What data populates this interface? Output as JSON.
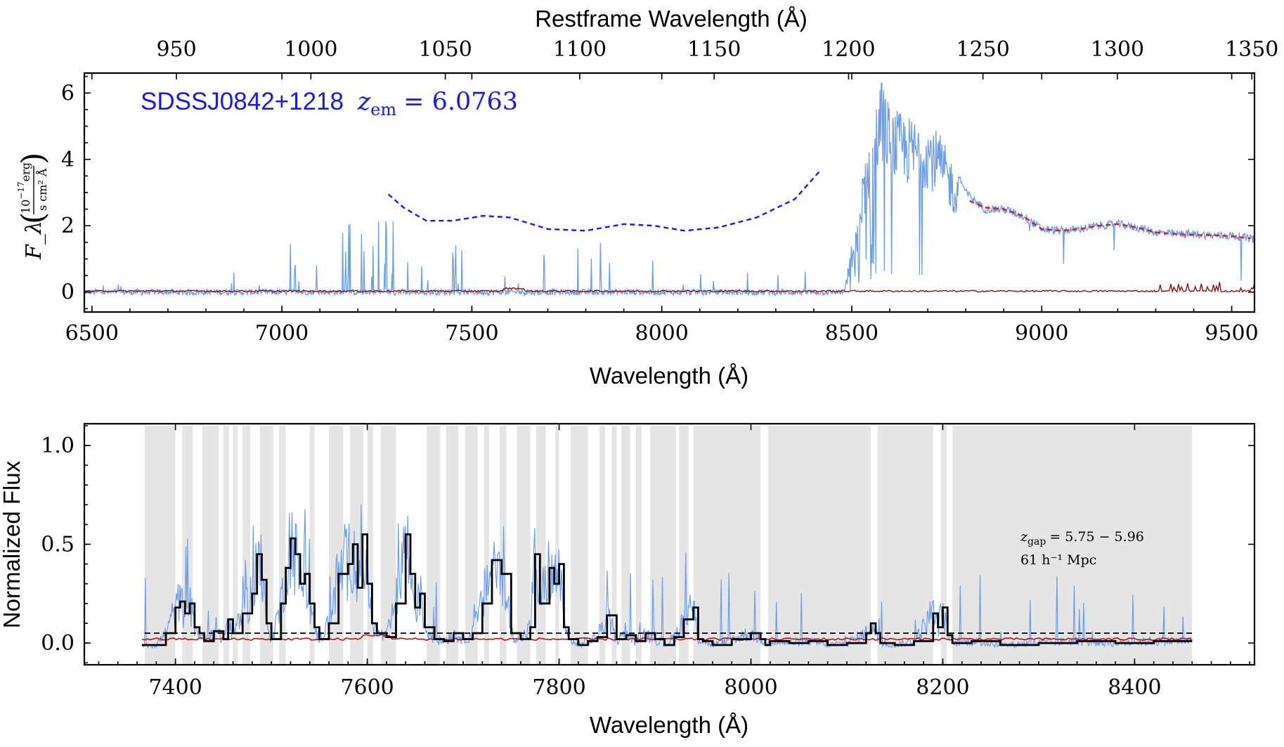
{
  "chart_data": [
    {
      "type": "line",
      "panel": "top",
      "xlabel": "Wavelength (Å)",
      "ylabel": "F_λ",
      "ylabel_unit_num": "10",
      "ylabel_unit_exp": "−17",
      "ylabel_unit_erg": "erg",
      "ylabel_unit_den": "s cm² Å",
      "top_axis_label": "Restframe Wavelength (Å)",
      "xlim": [
        6480,
        9560
      ],
      "ylim": [
        -0.6,
        6.6
      ],
      "xticks": [
        6500,
        7000,
        7500,
        8000,
        8500,
        9000,
        9500
      ],
      "yticks": [
        0,
        2,
        4,
        6
      ],
      "top_xticks": [
        950,
        1000,
        1050,
        1100,
        1150,
        1200,
        1250,
        1300,
        1350
      ],
      "annotation": {
        "object": "SDSSJ0842+1218",
        "z_symbol": "z",
        "z_sub": "em",
        "z_value": "= 6.0763",
        "color": "#1a1aee"
      },
      "series": [
        {
          "color": "#6f9ee8",
          "continuum_x": [
            6480,
            8480,
            8520,
            8560,
            8580,
            8600,
            8650,
            8700,
            8730,
            8760,
            8800,
            8850,
            8900,
            8950,
            9000,
            9050,
            9100,
            9150,
            9200,
            9250,
            9300,
            9350,
            9400,
            9450,
            9500,
            9560
          ],
          "continuum_y": [
            0,
            0,
            3.0,
            5.5,
            6.6,
            5.6,
            5.3,
            5.2,
            4.8,
            4.1,
            3.0,
            2.5,
            2.5,
            2.3,
            1.9,
            1.85,
            1.9,
            2.0,
            2.05,
            1.95,
            1.8,
            1.75,
            1.75,
            1.7,
            1.7,
            1.6
          ]
        },
        {
          "color": "#d42020",
          "style": "dashed",
          "x": [
            8810,
            8850,
            8900,
            8950,
            9000,
            9050,
            9100,
            9150,
            9200,
            9250,
            9300,
            9350,
            9400,
            9450,
            9500,
            9550
          ],
          "y": [
            2.75,
            2.55,
            2.5,
            2.3,
            1.9,
            1.85,
            1.9,
            2.0,
            2.05,
            1.95,
            1.8,
            1.75,
            1.72,
            1.72,
            1.68,
            1.62
          ]
        },
        {
          "color": "#1a1aee",
          "style": "dashed",
          "x": [
            7280,
            7320,
            7380,
            7450,
            7530,
            7600,
            7700,
            7800,
            7900,
            7980,
            8060,
            8150,
            8250,
            8350,
            8420
          ],
          "y": [
            2.95,
            2.55,
            2.15,
            2.15,
            2.3,
            2.25,
            1.9,
            1.85,
            2.05,
            2.0,
            1.85,
            1.95,
            2.25,
            2.8,
            3.7
          ]
        },
        {
          "color": "#8b1010",
          "x": [
            6480,
            9560
          ],
          "y": [
            0.05,
            0.05
          ]
        }
      ]
    },
    {
      "type": "line",
      "panel": "bottom",
      "xlabel": "Wavelength (Å)",
      "ylabel": "Normalized Flux",
      "xlim": [
        7305,
        8525
      ],
      "ylim": [
        -0.11,
        1.11
      ],
      "xticks": [
        7400,
        7600,
        7800,
        8000,
        8200,
        8400
      ],
      "yticks": [
        "0.0",
        "0.5",
        "1.0"
      ],
      "annotation_line1_symbol": "z",
      "annotation_line1_sub": "gap",
      "annotation_line1_value": "= 5.75 − 5.96",
      "annotation_line2": "61 h⁻¹ Mpc",
      "threshold": 0.05,
      "gap_regions": [
        [
          7368,
          7400
        ],
        [
          7407,
          7418
        ],
        [
          7428,
          7445
        ],
        [
          7450,
          7456
        ],
        [
          7460,
          7465
        ],
        [
          7470,
          7478
        ],
        [
          7488,
          7502
        ],
        [
          7508,
          7515
        ],
        [
          7540,
          7545
        ],
        [
          7560,
          7575
        ],
        [
          7582,
          7596
        ],
        [
          7600,
          7606
        ],
        [
          7614,
          7630
        ],
        [
          7662,
          7676
        ],
        [
          7682,
          7695
        ],
        [
          7702,
          7715
        ],
        [
          7722,
          7727
        ],
        [
          7738,
          7745
        ],
        [
          7756,
          7770
        ],
        [
          7776,
          7786
        ],
        [
          7796,
          7800
        ],
        [
          7812,
          7830
        ],
        [
          7842,
          7848
        ],
        [
          7855,
          7860
        ],
        [
          7865,
          7874
        ],
        [
          7880,
          7886
        ],
        [
          7895,
          7922
        ],
        [
          7925,
          7935
        ],
        [
          7940,
          8010
        ],
        [
          8018,
          8125
        ],
        [
          8132,
          8190
        ],
        [
          8198,
          8204
        ],
        [
          8210,
          8460
        ]
      ],
      "series": [
        {
          "name_hint": "binned",
          "color": "#000000",
          "x": [
            7365,
            7380,
            7390,
            7400,
            7405,
            7410,
            7415,
            7420,
            7425,
            7430,
            7440,
            7450,
            7455,
            7460,
            7470,
            7480,
            7485,
            7490,
            7495,
            7500,
            7510,
            7515,
            7520,
            7525,
            7530,
            7535,
            7540,
            7545,
            7550,
            7560,
            7570,
            7580,
            7585,
            7590,
            7595,
            7600,
            7605,
            7610,
            7620,
            7630,
            7640,
            7645,
            7650,
            7655,
            7660,
            7670,
            7680,
            7690,
            7700,
            7710,
            7720,
            7730,
            7740,
            7750,
            7760,
            7770,
            7775,
            7780,
            7790,
            7795,
            7800,
            7805,
            7810,
            7820,
            7830,
            7840,
            7850,
            7860,
            7870,
            7880,
            7890,
            7900,
            7910,
            7920,
            7930,
            7940,
            7945,
            7950,
            7960,
            7980,
            8000,
            8010,
            8015,
            8020,
            8040,
            8060,
            8080,
            8100,
            8120,
            8125,
            8130,
            8135,
            8150,
            8170,
            8190,
            8195,
            8200,
            8205,
            8210,
            8230,
            8260,
            8300,
            8340,
            8380,
            8420,
            8460
          ],
          "y": [
            -0.01,
            -0.01,
            0.05,
            0.18,
            0.21,
            0.15,
            0.2,
            0.08,
            0.05,
            0.01,
            0.06,
            0.02,
            0.12,
            0.05,
            0.15,
            0.25,
            0.45,
            0.32,
            0.1,
            0.02,
            0.2,
            0.38,
            0.53,
            0.45,
            0.3,
            0.35,
            0.2,
            0.08,
            0.02,
            0.1,
            0.35,
            0.4,
            0.5,
            0.28,
            0.55,
            0.3,
            0.1,
            0.05,
            0.03,
            0.2,
            0.55,
            0.35,
            0.18,
            0.25,
            0.08,
            0.02,
            0.01,
            0.05,
            0.02,
            0.05,
            0.2,
            0.42,
            0.35,
            0.05,
            0.02,
            0.08,
            0.45,
            0.2,
            0.38,
            0.3,
            0.4,
            0.08,
            0.02,
            -0.01,
            0.01,
            0.03,
            0.14,
            0.02,
            0.04,
            0.01,
            0.05,
            0.02,
            -0.01,
            0.03,
            0.12,
            0.18,
            0.02,
            0.01,
            -0.01,
            0.02,
            0.05,
            0.02,
            -0.01,
            0.01,
            0.0,
            0.01,
            -0.01,
            0.0,
            0.05,
            0.1,
            0.05,
            0.0,
            -0.01,
            0.01,
            0.15,
            0.08,
            0.18,
            0.04,
            0.0,
            0.01,
            -0.01,
            0.0,
            0.01,
            0.0,
            0.01,
            0.01
          ]
        },
        {
          "name_hint": "raw",
          "color": "#6f9ee8"
        },
        {
          "name_hint": "error",
          "color": "#b01515",
          "x": [
            7365,
            8460
          ],
          "y": [
            0.02,
            0.02
          ]
        }
      ]
    }
  ]
}
